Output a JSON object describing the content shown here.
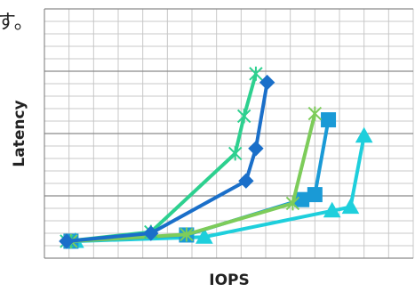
{
  "chart_data": {
    "type": "line",
    "note": "す。",
    "xlabel": "IOPS",
    "ylabel": "Latency",
    "xlim": [
      0,
      15
    ],
    "ylim": [
      0,
      20
    ],
    "xticks": [
      0,
      1,
      2,
      3,
      4,
      5,
      6,
      7,
      8,
      9,
      10,
      11,
      12,
      13,
      14,
      15
    ],
    "yticks": [
      0,
      5,
      10,
      15,
      20
    ],
    "yticks_minor": [
      0,
      1,
      2,
      3,
      4,
      5,
      6,
      7,
      8,
      9,
      10,
      11,
      12,
      13,
      14,
      15,
      16,
      17,
      18,
      19,
      20
    ],
    "grid": true,
    "series": [
      {
        "color": "#1ecfdc",
        "marker": "triangle",
        "x": [
          1.26,
          6.5,
          11.7,
          12.45,
          13.0
        ],
        "values": [
          1.36,
          1.7,
          3.8,
          4.1,
          9.8
        ]
      },
      {
        "color": "#1a9ad6",
        "marker": "square",
        "x": [
          1.08,
          5.78,
          10.47,
          11.0,
          11.55
        ],
        "values": [
          1.36,
          1.86,
          4.7,
          5.1,
          11.1
        ]
      },
      {
        "color": "#7dcc5a",
        "marker": "x",
        "x": [
          1.08,
          5.78,
          10.1,
          11.0
        ],
        "values": [
          1.36,
          1.9,
          4.4,
          11.6
        ]
      },
      {
        "color": "#2dd08f",
        "marker": "x",
        "x": [
          0.9,
          4.33,
          7.76,
          8.12,
          8.6
        ],
        "values": [
          1.36,
          2.1,
          8.4,
          11.4,
          14.8
        ]
      },
      {
        "color": "#1a6fc9",
        "marker": "diamond",
        "x": [
          0.9,
          4.33,
          8.2,
          8.6,
          9.06
        ],
        "values": [
          1.36,
          2.0,
          6.2,
          8.8,
          14.1
        ]
      }
    ]
  }
}
